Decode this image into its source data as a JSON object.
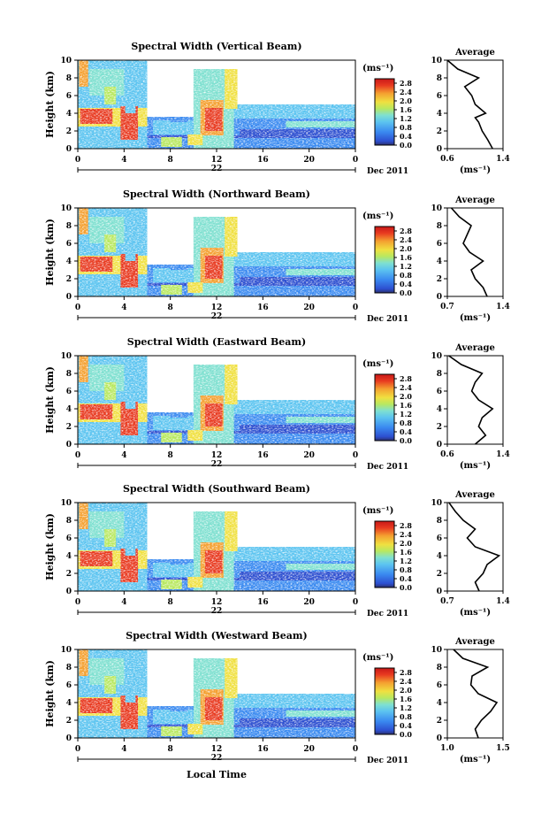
{
  "colorbar": {
    "unit": "(ms⁻¹)",
    "ticks": [
      "2.8",
      "2.4",
      "2.0",
      "1.6",
      "1.2",
      "0.8",
      "0.4",
      "0.0"
    ],
    "tick_values": [
      2.8,
      2.4,
      2.0,
      1.6,
      1.2,
      0.8,
      0.4,
      0.0
    ],
    "range": [
      0.0,
      3.0
    ],
    "colors": [
      "#2b2f6b",
      "#2d4fd0",
      "#3a8af0",
      "#5cc4f0",
      "#7fe0d0",
      "#b8e860",
      "#f0e040",
      "#f4a030",
      "#e83a20",
      "#c81818"
    ]
  },
  "shared": {
    "date_label": "Dec 2011",
    "day_label": "22",
    "xlabel_main": "Height (km)",
    "time_label": "Local Time",
    "x_ticks": [
      "0",
      "4",
      "8",
      "12",
      "16",
      "20",
      "0"
    ],
    "y_ticks": [
      "0",
      "2",
      "4",
      "6",
      "8",
      "10"
    ],
    "avg_title": "Average",
    "avg_unit": "(ms⁻¹)"
  },
  "chart_data": [
    {
      "type": "heatmap",
      "title": "Spectral Width (Vertical Beam)",
      "ylabel": "Height (km)",
      "ylim": [
        0,
        10
      ],
      "xlim": [
        0,
        24
      ],
      "avg_xticks": [
        "0.6",
        "1.4"
      ],
      "avg_xlim": [
        0.6,
        1.4
      ],
      "avg_profile": [
        [
          1.25,
          0
        ],
        [
          1.18,
          1
        ],
        [
          1.1,
          2
        ],
        [
          1.05,
          3
        ],
        [
          1.0,
          3.5
        ],
        [
          1.15,
          4
        ],
        [
          1.0,
          5
        ],
        [
          0.95,
          6
        ],
        [
          0.85,
          7
        ],
        [
          1.05,
          8
        ],
        [
          0.75,
          9
        ],
        [
          0.6,
          10
        ]
      ]
    },
    {
      "type": "heatmap",
      "title": "Spectral Width (Northward Beam)",
      "ylabel": "Height (km)",
      "ylim": [
        0,
        10
      ],
      "xlim": [
        0,
        24
      ],
      "avg_xticks": [
        "0.7",
        "1.4"
      ],
      "avg_xlim": [
        0.7,
        1.4
      ],
      "avg_profile": [
        [
          1.2,
          0
        ],
        [
          1.15,
          1
        ],
        [
          1.05,
          2
        ],
        [
          1.0,
          3
        ],
        [
          1.15,
          4
        ],
        [
          0.98,
          5
        ],
        [
          0.9,
          6
        ],
        [
          0.95,
          7
        ],
        [
          1.0,
          8
        ],
        [
          0.85,
          9
        ],
        [
          0.75,
          10
        ]
      ]
    },
    {
      "type": "heatmap",
      "title": "Spectral Width (Eastward Beam)",
      "ylabel": "Height (km)",
      "ylim": [
        0,
        10
      ],
      "xlim": [
        0,
        24
      ],
      "avg_xticks": [
        "0.6",
        "1.4"
      ],
      "avg_xlim": [
        0.6,
        1.4
      ],
      "avg_profile": [
        [
          1.0,
          0
        ],
        [
          1.15,
          1
        ],
        [
          1.05,
          2
        ],
        [
          1.1,
          3
        ],
        [
          1.25,
          4
        ],
        [
          1.05,
          5
        ],
        [
          0.95,
          6
        ],
        [
          1.0,
          7
        ],
        [
          1.1,
          8
        ],
        [
          0.8,
          9
        ],
        [
          0.62,
          10
        ]
      ]
    },
    {
      "type": "heatmap",
      "title": "Spectral Width (Southward Beam)",
      "ylabel": "Height (km)",
      "ylim": [
        0,
        10
      ],
      "xlim": [
        0,
        24
      ],
      "avg_xticks": [
        "0.7",
        "1.4"
      ],
      "avg_xlim": [
        0.7,
        1.4
      ],
      "avg_profile": [
        [
          1.1,
          0
        ],
        [
          1.05,
          1
        ],
        [
          1.15,
          2
        ],
        [
          1.2,
          3
        ],
        [
          1.35,
          4
        ],
        [
          1.05,
          5
        ],
        [
          0.95,
          6
        ],
        [
          1.05,
          7
        ],
        [
          0.9,
          8
        ],
        [
          0.8,
          9
        ],
        [
          0.72,
          10
        ]
      ]
    },
    {
      "type": "heatmap",
      "title": "Spectral Width (Westward Beam)",
      "ylabel": "Height (km)",
      "ylim": [
        0,
        10
      ],
      "xlim": [
        0,
        24
      ],
      "avg_xticks": [
        "1.0",
        "1.5"
      ],
      "avg_xlim": [
        0.6,
        1.5
      ],
      "avg_profile": [
        [
          1.1,
          0
        ],
        [
          1.05,
          1
        ],
        [
          1.15,
          2
        ],
        [
          1.3,
          3
        ],
        [
          1.4,
          4
        ],
        [
          1.1,
          5
        ],
        [
          0.98,
          6
        ],
        [
          1.0,
          7
        ],
        [
          1.25,
          8
        ],
        [
          0.85,
          9
        ],
        [
          0.7,
          10
        ]
      ]
    }
  ]
}
